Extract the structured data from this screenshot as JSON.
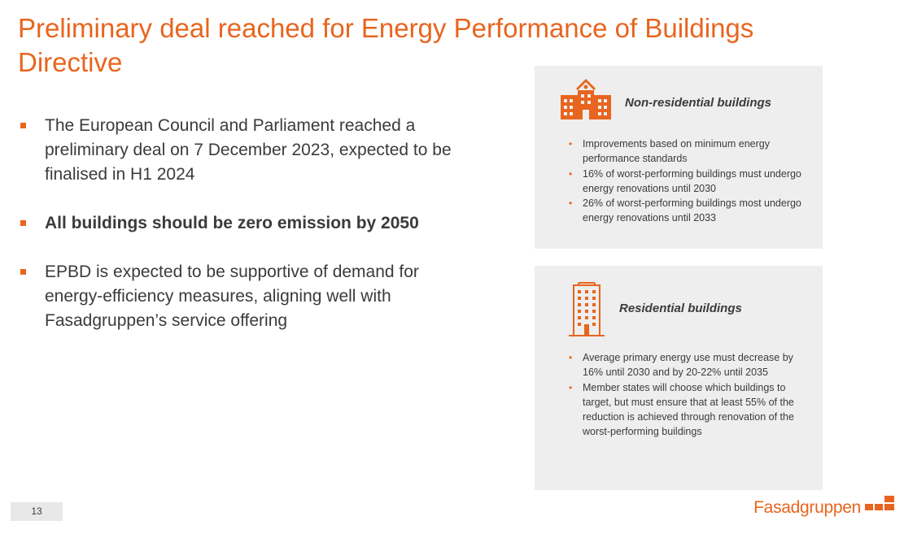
{
  "title": "Preliminary deal reached for Energy Performance of Buildings Directive",
  "bullets": [
    "The European Council and Parliament reached a preliminary deal on 7 December 2023, expected to be finalised in H1 2024",
    "All buildings should be zero emission by 2050",
    "EPBD is expected to be supportive of demand for energy-efficiency measures, aligning well with Fasadgruppen’s service offering"
  ],
  "panels": {
    "non_residential": {
      "heading": "Non-residential buildings",
      "icon": "office-building-icon",
      "items": [
        "Improvements based on minimum energy performance standards",
        "16% of worst-performing buildings must undergo energy renovations until 2030",
        "26% of worst-performing buildings most undergo energy renovations until 2033"
      ]
    },
    "residential": {
      "heading": "Residential buildings",
      "icon": "apartment-tower-icon",
      "items": [
        "Average primary energy use must decrease by 16% until 2030 and by 20-22% until 2035",
        "Member states will choose which buildings to target, but must ensure that at least 55% of the reduction is achieved through renovation of the worst-performing buildings"
      ]
    }
  },
  "footer": {
    "page_number": "13",
    "logo_text": "Fasadgruppen"
  },
  "colors": {
    "accent": "#e8651f",
    "panel_bg": "#eeeeee",
    "text": "#3b3b3b"
  }
}
